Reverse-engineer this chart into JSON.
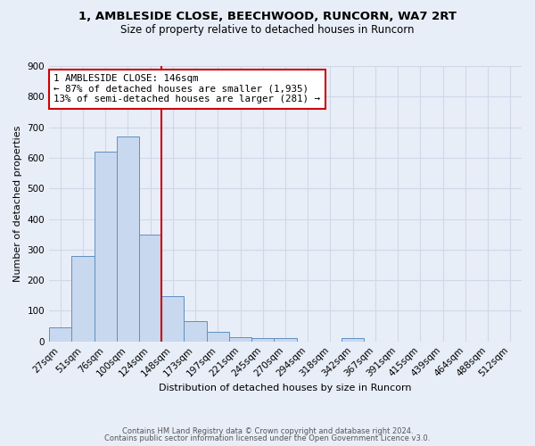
{
  "title": "1, AMBLESIDE CLOSE, BEECHWOOD, RUNCORN, WA7 2RT",
  "subtitle": "Size of property relative to detached houses in Runcorn",
  "xlabel": "Distribution of detached houses by size in Runcorn",
  "ylabel": "Number of detached properties",
  "bin_labels": [
    "27sqm",
    "51sqm",
    "76sqm",
    "100sqm",
    "124sqm",
    "148sqm",
    "173sqm",
    "197sqm",
    "221sqm",
    "245sqm",
    "270sqm",
    "294sqm",
    "318sqm",
    "342sqm",
    "367sqm",
    "391sqm",
    "415sqm",
    "439sqm",
    "464sqm",
    "488sqm",
    "512sqm"
  ],
  "bar_heights": [
    45,
    280,
    620,
    670,
    348,
    148,
    65,
    32,
    15,
    10,
    10,
    0,
    0,
    10,
    0,
    0,
    0,
    0,
    0,
    0,
    0
  ],
  "bar_color": "#c8d8ee",
  "bar_edge_color": "#6090c0",
  "vline_x_index": 5,
  "vline_color": "#cc0000",
  "annotation_line1": "1 AMBLESIDE CLOSE: 146sqm",
  "annotation_line2": "← 87% of detached houses are smaller (1,935)",
  "annotation_line3": "13% of semi-detached houses are larger (281) →",
  "annotation_box_color": "#ffffff",
  "annotation_box_edge_color": "#cc0000",
  "ylim": [
    0,
    900
  ],
  "yticks": [
    0,
    100,
    200,
    300,
    400,
    500,
    600,
    700,
    800,
    900
  ],
  "footer_line1": "Contains HM Land Registry data © Crown copyright and database right 2024.",
  "footer_line2": "Contains public sector information licensed under the Open Government Licence v3.0.",
  "background_color": "#e8eef8",
  "grid_color": "#d0d8e8",
  "title_fontsize": 9.5,
  "subtitle_fontsize": 8.5,
  "tick_fontsize": 7.5,
  "ylabel_fontsize": 8,
  "xlabel_fontsize": 8
}
